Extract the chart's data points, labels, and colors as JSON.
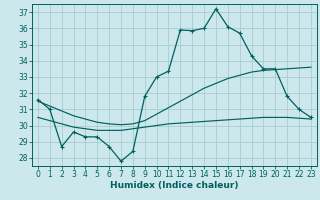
{
  "xlabel": "Humidex (Indice chaleur)",
  "xlim": [
    -0.5,
    23.5
  ],
  "ylim": [
    27.5,
    37.5
  ],
  "yticks": [
    28,
    29,
    30,
    31,
    32,
    33,
    34,
    35,
    36,
    37
  ],
  "xticks": [
    0,
    1,
    2,
    3,
    4,
    5,
    6,
    7,
    8,
    9,
    10,
    11,
    12,
    13,
    14,
    15,
    16,
    17,
    18,
    19,
    20,
    21,
    22,
    23
  ],
  "background_color": "#cce8ec",
  "grid_color": "#aacccc",
  "line_color": "#006060",
  "line1_y": [
    31.6,
    31.0,
    28.7,
    29.6,
    29.3,
    29.3,
    28.7,
    27.8,
    28.4,
    31.8,
    33.0,
    33.35,
    35.9,
    35.85,
    36.0,
    37.2,
    36.1,
    35.7,
    34.3,
    33.5,
    33.5,
    31.8,
    31.0,
    30.5
  ],
  "line2_y": [
    30.5,
    30.3,
    30.1,
    29.9,
    29.8,
    29.7,
    29.7,
    29.7,
    29.8,
    29.9,
    30.0,
    30.1,
    30.15,
    30.2,
    30.25,
    30.3,
    30.35,
    30.4,
    30.45,
    30.5,
    30.5,
    30.5,
    30.45,
    30.4
  ],
  "line3_y": [
    31.5,
    31.2,
    30.9,
    30.6,
    30.4,
    30.2,
    30.1,
    30.05,
    30.1,
    30.3,
    30.7,
    31.1,
    31.5,
    31.9,
    32.3,
    32.6,
    32.9,
    33.1,
    33.3,
    33.4,
    33.45,
    33.5,
    33.55,
    33.6
  ]
}
